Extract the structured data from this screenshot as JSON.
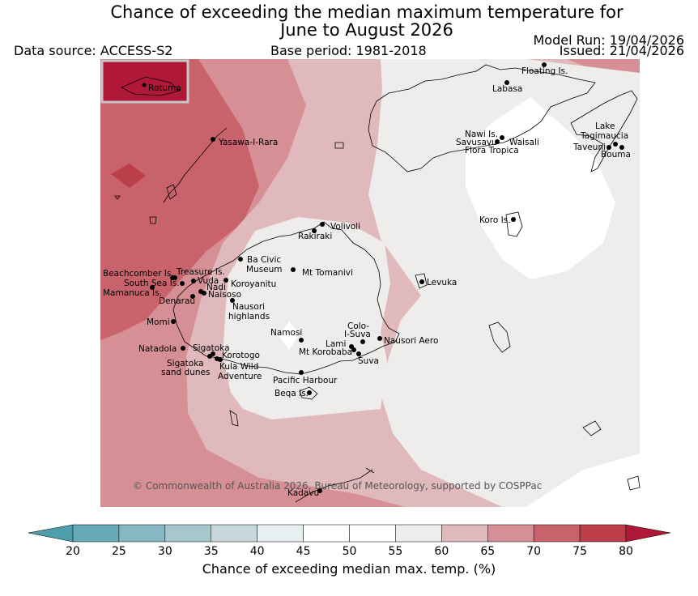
{
  "header": {
    "title_line1": "Chance of exceeding the median maximum temperature for",
    "title_line2": "June to August 2026",
    "data_source": "Data source: ACCESS-S2",
    "base_period": "Base period: 1981-2018",
    "model_run": "Model Run: 19/04/2026",
    "issued": "Issued: 21/04/2026"
  },
  "inset": {
    "label": "Rotuma"
  },
  "places": [
    "Floating Is.",
    "Labasa",
    "Nawi Is.",
    "Savusavu",
    "Waisali",
    "Flora Tropica",
    "Lake",
    "Tagimaucia",
    "Taveuni",
    "Bouma",
    "Yasawa-I-Rara",
    "Koro Is.",
    "Volivoli",
    "Rakiraki",
    "Ba Civic",
    "Museum",
    "Mt Tomanivi",
    "Beachcomber Is.",
    "Treasure Is.",
    "South Sea Is.",
    "Vuda",
    "Mamanuca Is.",
    "Nadi",
    "Koroyanitu",
    "Denarau",
    "Naisoso",
    "Nausori",
    "highlands",
    "Levuka",
    "Momi",
    "Colo-",
    "I-Suva",
    "Namosi",
    "Natadola",
    "Sigatoka",
    "Lami",
    "Nausori Aero",
    "Mt Korobaba",
    "Korotogo",
    "Suva",
    "Sigatoka",
    "sand dunes",
    "Kula Wild",
    "Adventure",
    "Pacific Harbour",
    "Beqa Is.",
    "Kadavu"
  ],
  "copyright": "© Commonwealth of Australia 2026, Bureau of Meteorology, supported by COSPPac",
  "colorbar": {
    "title": "Chance of exceeding median max. temp. (%)",
    "ticks": [
      "20",
      "25",
      "30",
      "35",
      "40",
      "45",
      "50",
      "55",
      "60",
      "65",
      "70",
      "75",
      "80"
    ],
    "under_color": "#4f9ead",
    "over_color": "#b01838",
    "colors": [
      "#66a9b8",
      "#86b7c2",
      "#a6c7cd",
      "#c8d7dc",
      "#e8eff2",
      "#ffffff",
      "#ffffff",
      "#eeedeb",
      "#e0b9bd",
      "#d58f95",
      "#c9636b",
      "#bd3e4b"
    ]
  }
}
